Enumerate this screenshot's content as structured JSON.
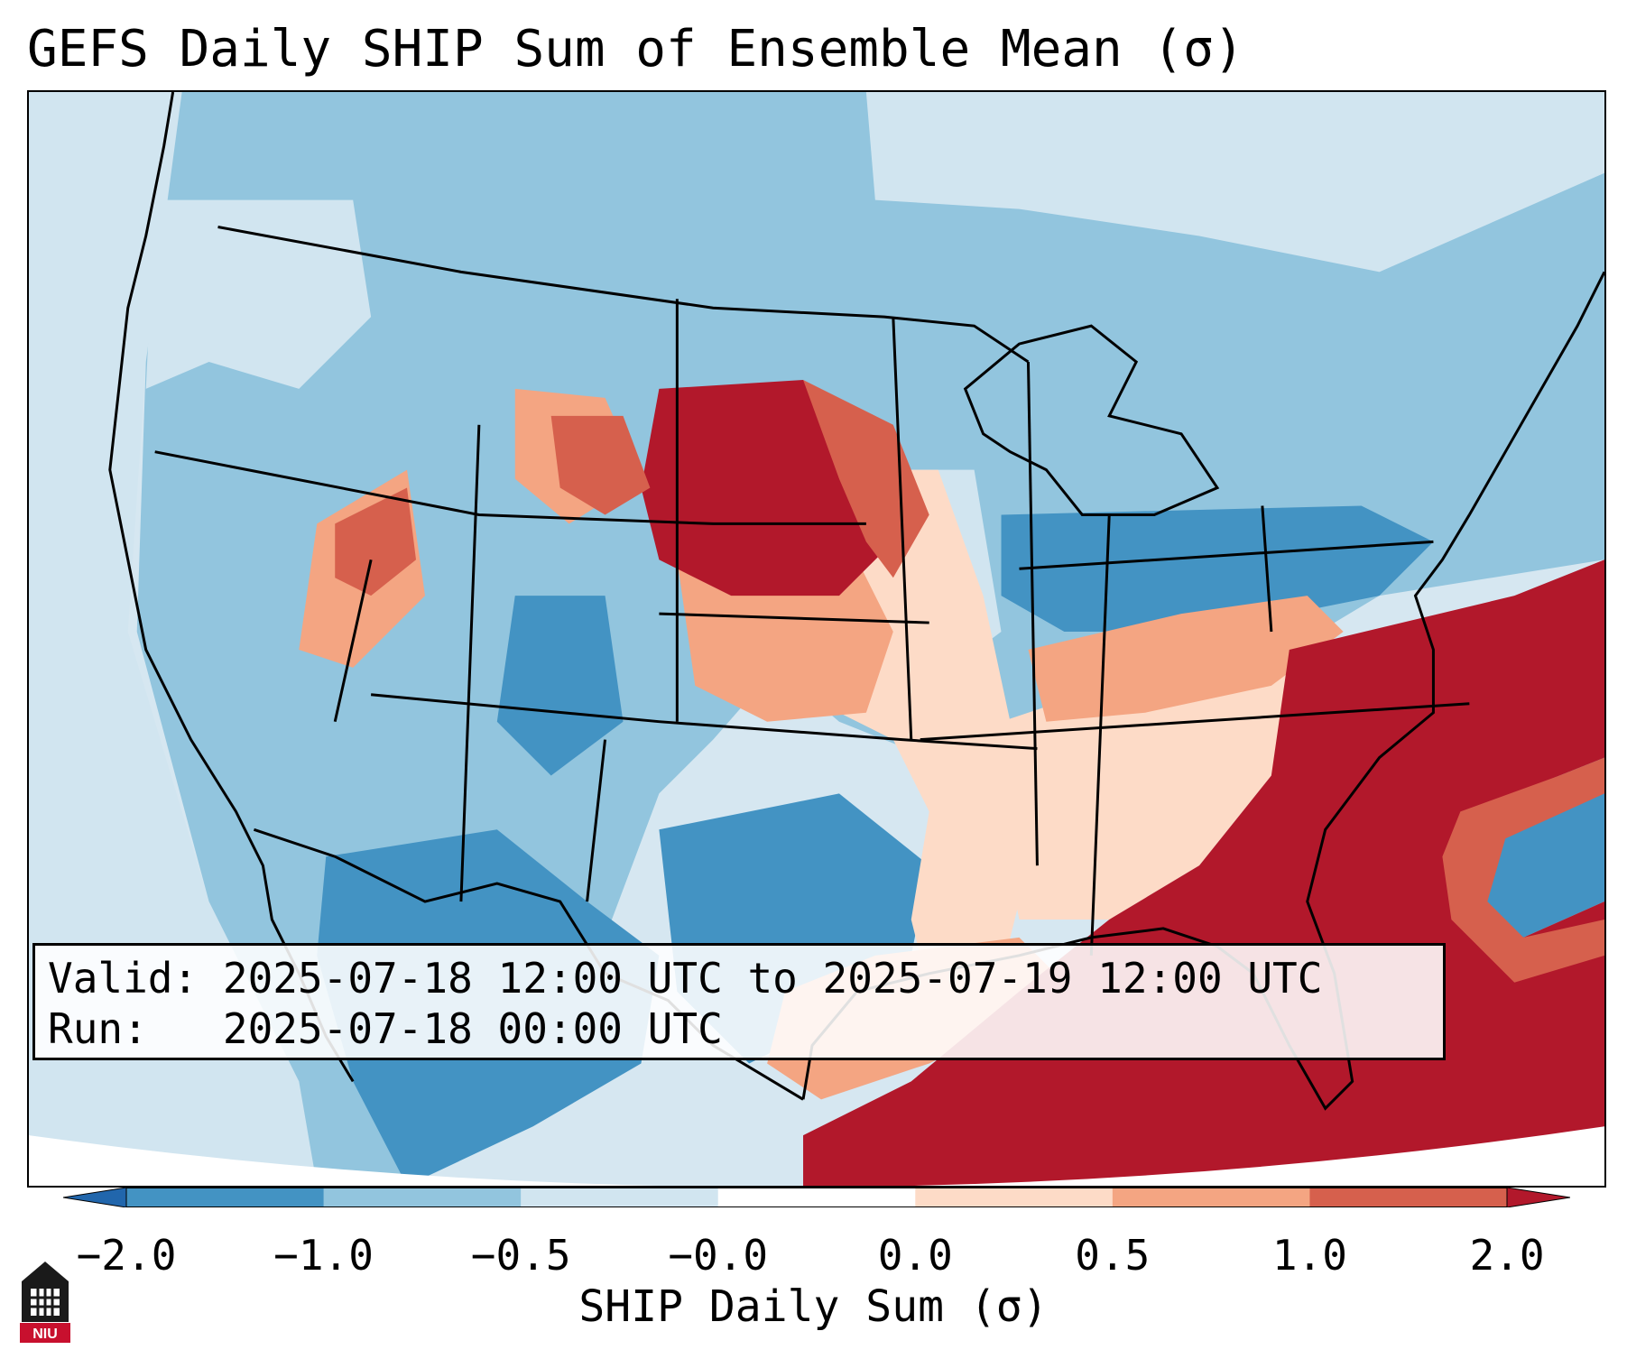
{
  "title": "GEFS Daily SHIP Sum of Ensemble Mean (σ)",
  "info": {
    "valid_label": "Valid:",
    "valid_value": "2025-07-18 12:00 UTC to 2025-07-19 12:00 UTC",
    "run_label": "Run:",
    "run_value": "2025-07-18 00:00 UTC"
  },
  "colorbar": {
    "label": "SHIP Daily Sum (σ)",
    "tick_labels": [
      "−2.0",
      "−1.0",
      "−0.5",
      "−0.0",
      "0.0",
      "0.5",
      "1.0",
      "2.0"
    ],
    "segment_colors": [
      "#2166ac",
      "#4393c3",
      "#92c5de",
      "#d1e5f0",
      "#ffffff",
      "#fddbc7",
      "#f4a582",
      "#d6604d",
      "#b2182b"
    ]
  },
  "map": {
    "ocean_color": "#d6e7f1",
    "region": "Contiguous United States",
    "features": [
      "state-borders",
      "coastlines",
      "great-lakes"
    ]
  },
  "logo": {
    "text": "NIU",
    "icon": "niu-logo-icon"
  }
}
